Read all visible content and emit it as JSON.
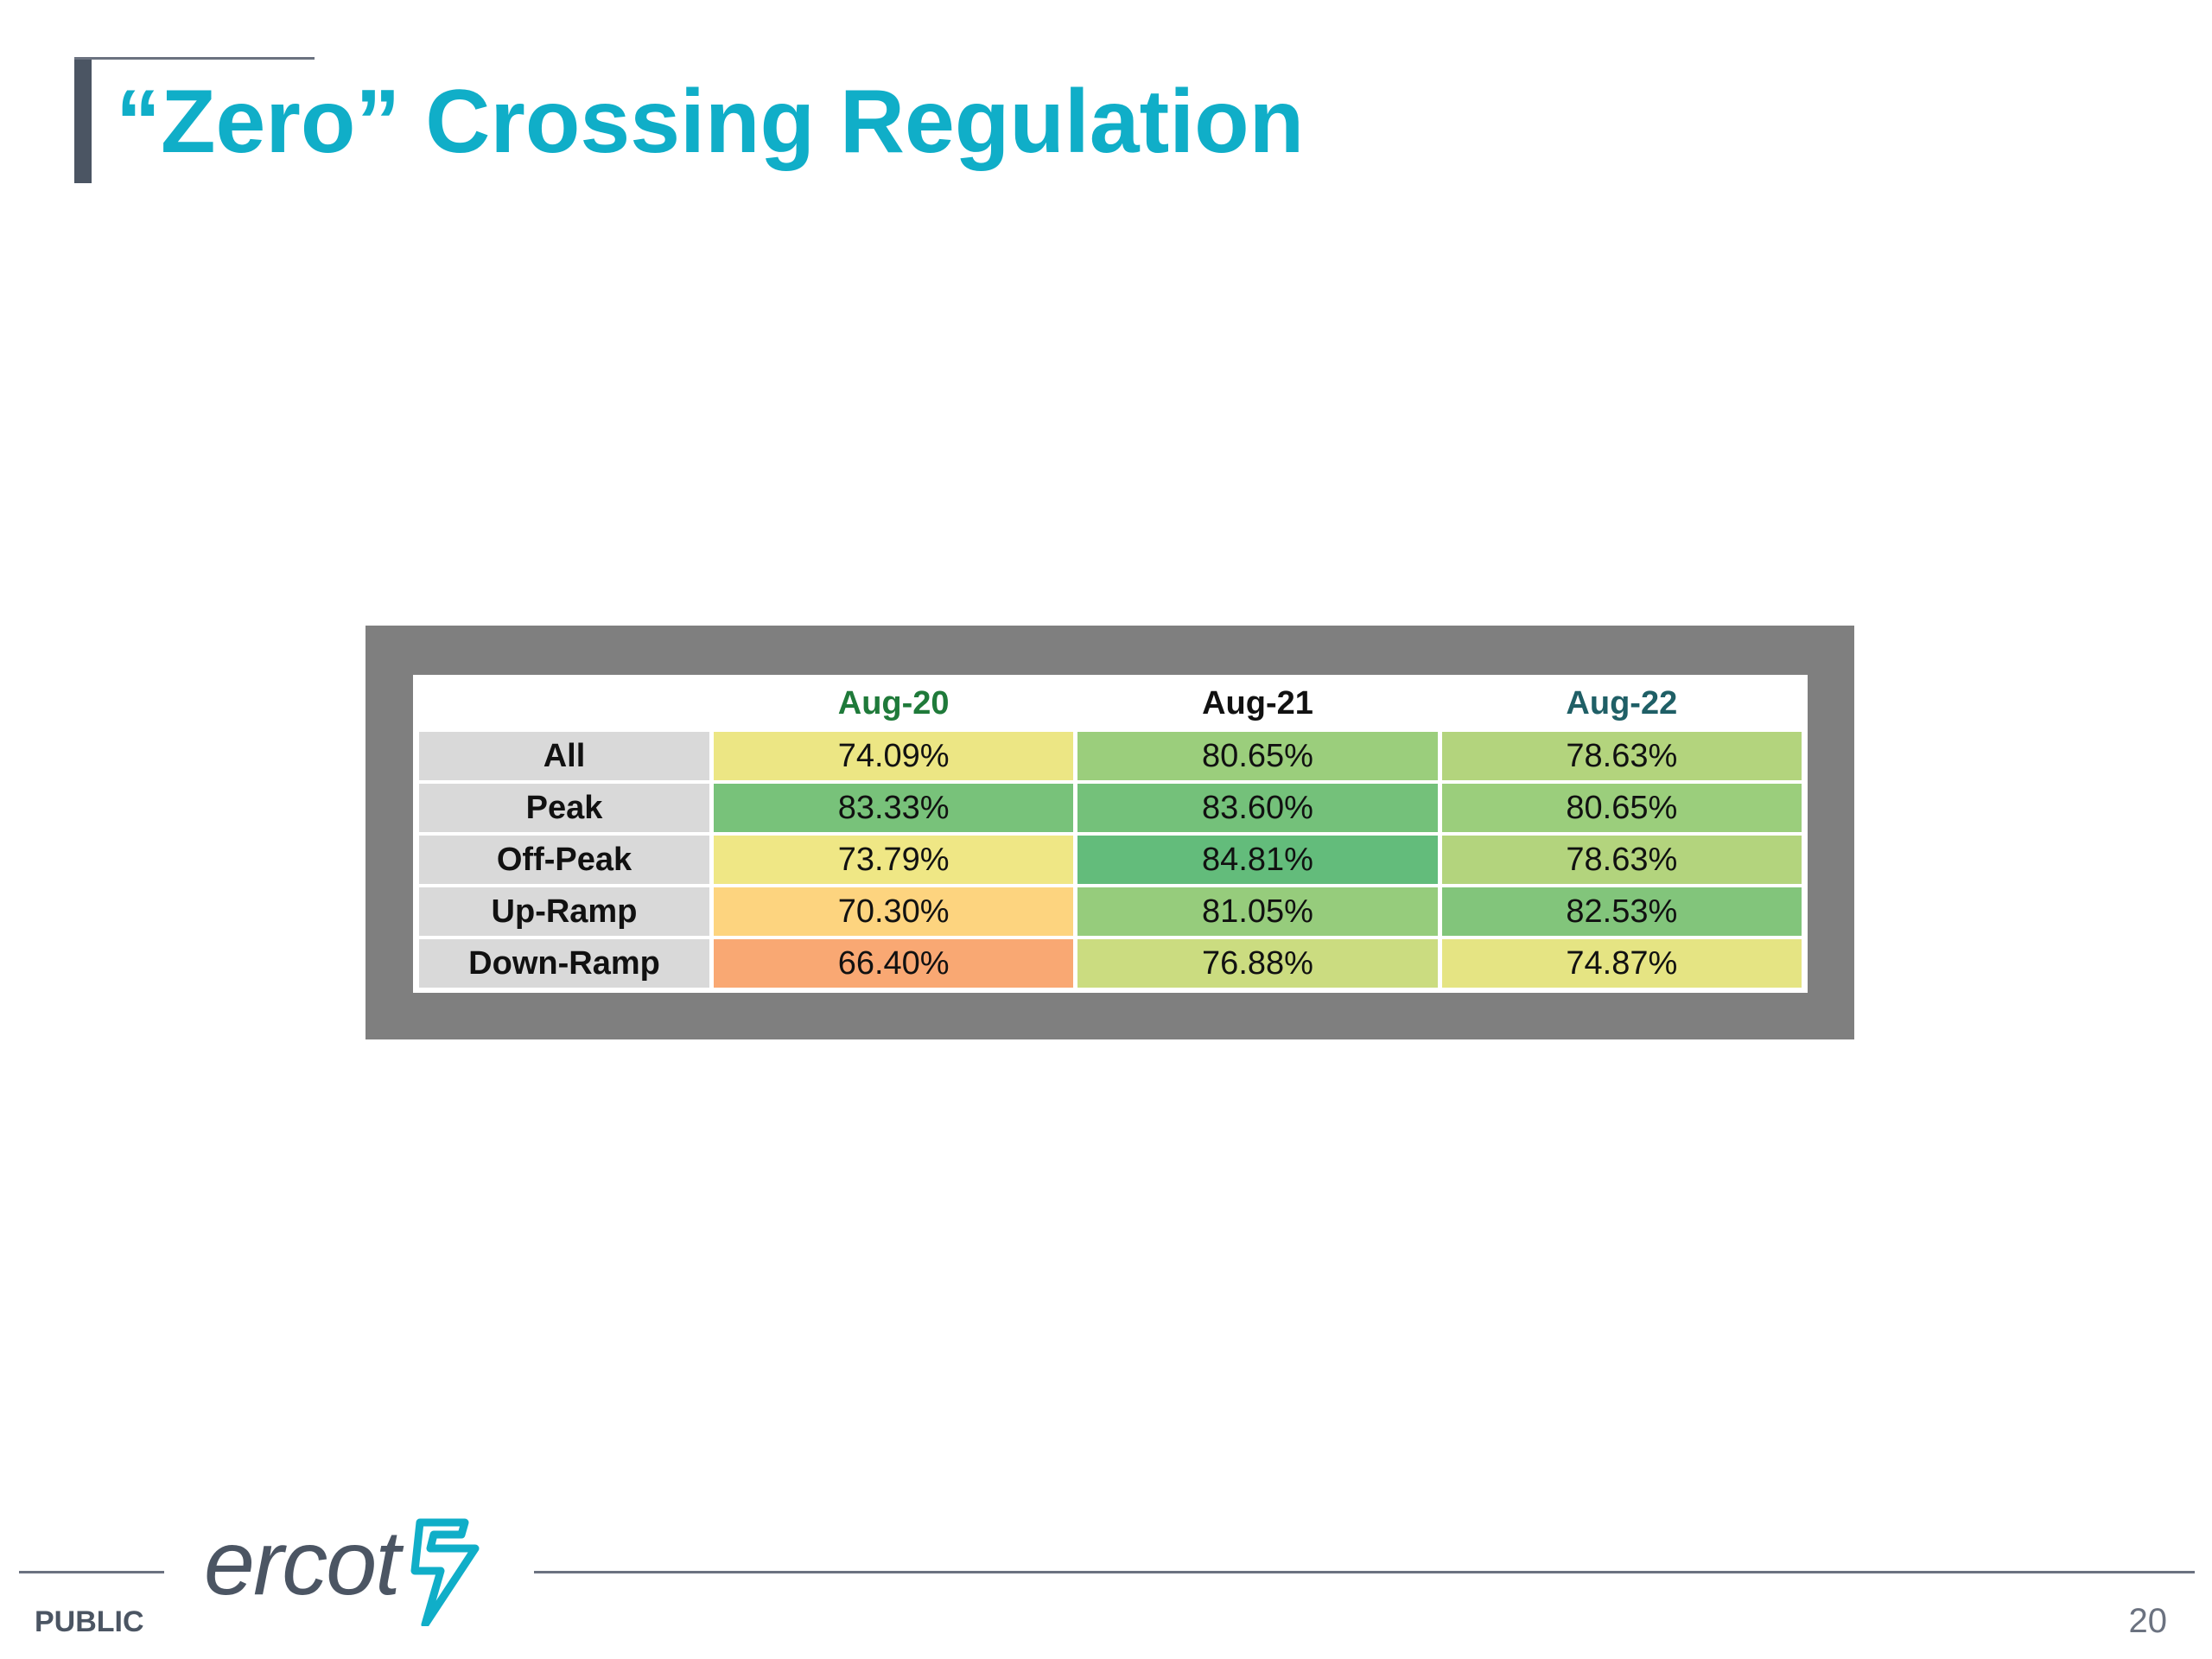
{
  "slide": {
    "title": "“Zero” Crossing Regulation",
    "footer": {
      "label": "PUBLIC",
      "page_number": "20",
      "logo_text": "ercot"
    }
  },
  "table": {
    "headers": [
      {
        "label": "Aug-20",
        "color": "#1f7a3a"
      },
      {
        "label": "Aug-21",
        "color": "#111111"
      },
      {
        "label": "Aug-22",
        "color": "#1f5f66"
      }
    ],
    "rows": [
      {
        "label": "All",
        "cells": [
          {
            "value": "74.09%",
            "color": "#ece684"
          },
          {
            "value": "80.65%",
            "color": "#9bce7c"
          },
          {
            "value": "78.63%",
            "color": "#b3d47d"
          }
        ]
      },
      {
        "label": "Peak",
        "cells": [
          {
            "value": "83.33%",
            "color": "#78c27a"
          },
          {
            "value": "83.60%",
            "color": "#74c17a"
          },
          {
            "value": "80.65%",
            "color": "#9bce7c"
          }
        ]
      },
      {
        "label": "Off-Peak",
        "cells": [
          {
            "value": "73.79%",
            "color": "#efe785"
          },
          {
            "value": "84.81%",
            "color": "#63bc7b"
          },
          {
            "value": "78.63%",
            "color": "#b3d47d"
          }
        ]
      },
      {
        "label": "Up-Ramp",
        "cells": [
          {
            "value": "70.30%",
            "color": "#fdd47f"
          },
          {
            "value": "81.05%",
            "color": "#96cc7c"
          },
          {
            "value": "82.53%",
            "color": "#82c57b"
          }
        ]
      },
      {
        "label": "Down-Ramp",
        "cells": [
          {
            "value": "66.40%",
            "color": "#f9a873"
          },
          {
            "value": "76.88%",
            "color": "#cbdc80"
          },
          {
            "value": "74.87%",
            "color": "#e5e483"
          }
        ]
      }
    ]
  },
  "colors": {
    "title": "#10aec8",
    "frame": "#7f7f7f",
    "row_label_bg": "#d9d9d9",
    "logo_accent": "#10aec8"
  },
  "icons": {
    "logo_mark": "ercot-lightning-mark-icon"
  }
}
